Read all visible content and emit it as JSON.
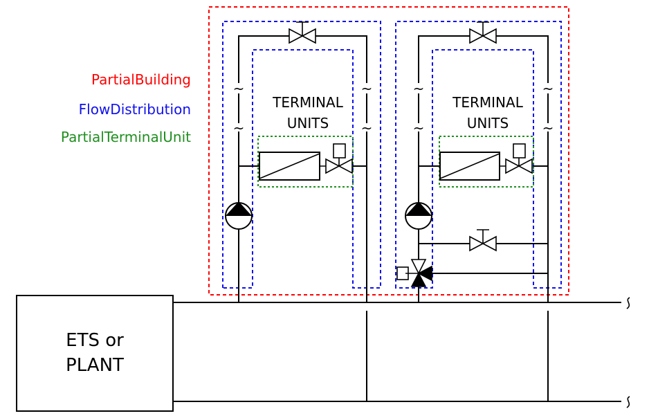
{
  "legend": {
    "partial_building": "PartialBuilding",
    "flow_distribution": "FlowDistribution",
    "partial_terminal_unit": "PartialTerminalUnit"
  },
  "colors": {
    "partial_building": "#ff0000",
    "flow_distribution": "#1010ee",
    "partial_terminal_unit": "#1f8f1f"
  },
  "left_building": {
    "terminal_label_line1": "TERMINAL",
    "terminal_label_line2": "UNITS"
  },
  "right_building": {
    "terminal_label_line1": "TERMINAL",
    "terminal_label_line2": "UNITS"
  },
  "plant": {
    "line1": "ETS or",
    "line2": "PLANT"
  },
  "icons": [
    "pump-icon",
    "two-way-valve-icon",
    "three-way-valve-icon",
    "heat-exchanger-icon",
    "actuator-icon",
    "pipe-break-icon"
  ]
}
